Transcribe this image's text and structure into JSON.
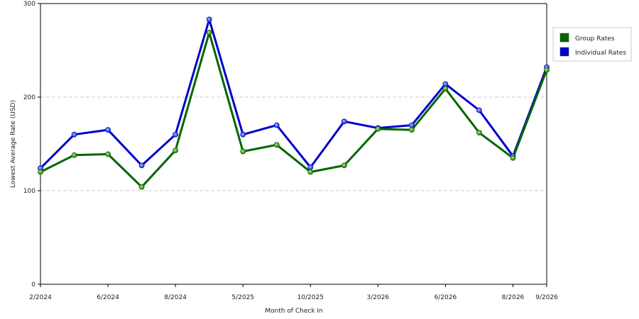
{
  "chart_data": {
    "type": "line",
    "title": "",
    "xlabel": "Month of Check In",
    "ylabel": "Lowest Average Rate (USD)",
    "ylim": [
      0,
      300
    ],
    "yticks": [
      0,
      100,
      200,
      300
    ],
    "grid": "horizontal dashed",
    "legend_position": "right",
    "x_tick_labels": [
      "2/2024",
      "6/2024",
      "8/2024",
      "5/2025",
      "10/2025",
      "3/2026",
      "6/2026",
      "8/2026",
      "9/2026"
    ],
    "x_tick_indices": [
      0,
      2,
      4,
      6,
      8,
      10,
      12,
      14,
      15
    ],
    "num_points": 16,
    "series": [
      {
        "name": "Individual Rates",
        "color": "#0000cc",
        "values": [
          124,
          160,
          165,
          127,
          160,
          283,
          160,
          170,
          125,
          174,
          167,
          170,
          214,
          186,
          137,
          232
        ]
      },
      {
        "name": "Group Rates",
        "color": "#006600",
        "values": [
          120,
          138,
          139,
          104,
          143,
          269,
          142,
          149,
          120,
          127,
          166,
          165,
          209,
          162,
          135,
          229
        ]
      }
    ]
  }
}
